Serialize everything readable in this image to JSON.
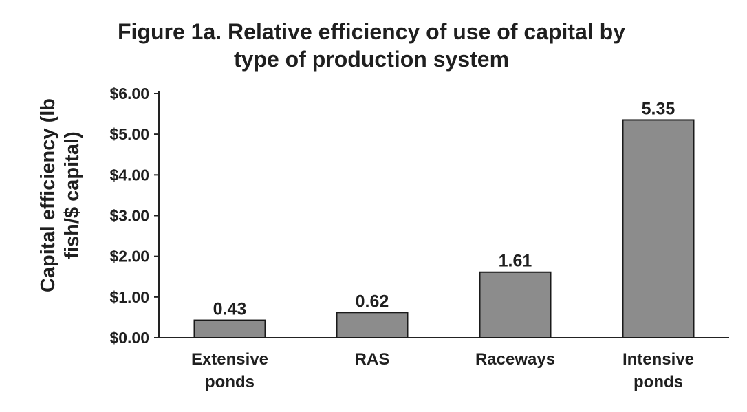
{
  "chart_data": {
    "type": "bar",
    "title_line1": "Figure 1a. Relative efficiency of use of capital by",
    "title_line2": "type of production system",
    "ylabel_line1": "Capital efficiency (lb",
    "ylabel_line2": "fish/$ capital)",
    "xlabel": "",
    "categories": [
      [
        "Extensive",
        "ponds"
      ],
      [
        "RAS"
      ],
      [
        "Raceways"
      ],
      [
        "Intensive",
        "ponds"
      ]
    ],
    "values": [
      0.43,
      0.62,
      1.61,
      5.35
    ],
    "value_labels": [
      "0.43",
      "0.62",
      "1.61",
      "5.35"
    ],
    "ylim": [
      0,
      6
    ],
    "yticks": [
      0,
      1,
      2,
      3,
      4,
      5,
      6
    ],
    "ytick_labels": [
      "$0.00",
      "$1.00",
      "$2.00",
      "$3.00",
      "$4.00",
      "$5.00",
      "$6.00"
    ],
    "grid": false,
    "legend": "none",
    "bar_color": "#8c8c8c",
    "bar_edge_color": "#1a1a1a",
    "text_color": "#1f1f1f"
  }
}
